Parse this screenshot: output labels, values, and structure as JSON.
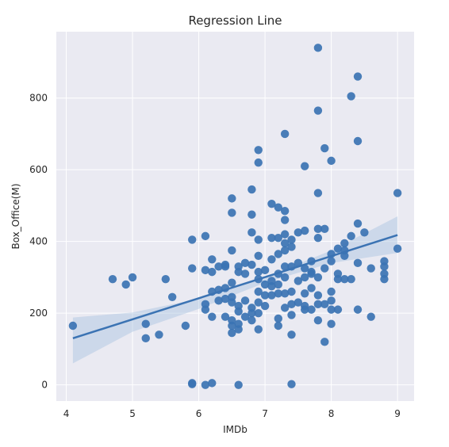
{
  "chart_data": {
    "type": "scatter",
    "title": "Regression Line",
    "xlabel": "IMDb",
    "ylabel": "Box_Office(M)",
    "xlim": [
      3.85,
      9.25
    ],
    "ylim": [
      -45,
      985
    ],
    "x_ticks": [
      4,
      5,
      6,
      7,
      8,
      9
    ],
    "y_ticks": [
      0,
      200,
      400,
      600,
      800
    ],
    "grid": true,
    "colors": {
      "background": "#eaeaf2",
      "points": "#3b73b3",
      "line": "#3b73b3",
      "band": "#a9c4e0"
    },
    "points": [
      [
        4.1,
        165
      ],
      [
        4.7,
        295
      ],
      [
        4.9,
        280
      ],
      [
        5.0,
        300
      ],
      [
        5.2,
        170
      ],
      [
        5.2,
        130
      ],
      [
        5.4,
        140
      ],
      [
        5.5,
        295
      ],
      [
        5.6,
        245
      ],
      [
        5.8,
        165
      ],
      [
        5.9,
        5
      ],
      [
        5.9,
        2
      ],
      [
        5.9,
        325
      ],
      [
        5.9,
        405
      ],
      [
        6.1,
        415
      ],
      [
        6.1,
        320
      ],
      [
        6.1,
        225
      ],
      [
        6.1,
        210
      ],
      [
        6.1,
        0
      ],
      [
        6.2,
        5
      ],
      [
        6.2,
        190
      ],
      [
        6.2,
        260
      ],
      [
        6.2,
        315
      ],
      [
        6.2,
        350
      ],
      [
        6.3,
        330
      ],
      [
        6.3,
        265
      ],
      [
        6.3,
        235
      ],
      [
        6.4,
        240
      ],
      [
        6.4,
        190
      ],
      [
        6.4,
        270
      ],
      [
        6.4,
        330
      ],
      [
        6.4,
        335
      ],
      [
        6.5,
        520
      ],
      [
        6.5,
        480
      ],
      [
        6.5,
        375
      ],
      [
        6.5,
        285
      ],
      [
        6.5,
        245
      ],
      [
        6.5,
        230
      ],
      [
        6.5,
        180
      ],
      [
        6.5,
        165
      ],
      [
        6.5,
        145
      ],
      [
        6.6,
        330
      ],
      [
        6.6,
        315
      ],
      [
        6.6,
        220
      ],
      [
        6.6,
        205
      ],
      [
        6.6,
        170
      ],
      [
        6.6,
        155
      ],
      [
        6.6,
        0
      ],
      [
        6.7,
        340
      ],
      [
        6.7,
        310
      ],
      [
        6.7,
        235
      ],
      [
        6.7,
        190
      ],
      [
        6.8,
        545
      ],
      [
        6.8,
        475
      ],
      [
        6.8,
        425
      ],
      [
        6.8,
        335
      ],
      [
        6.8,
        215
      ],
      [
        6.8,
        200
      ],
      [
        6.8,
        180
      ],
      [
        6.9,
        655
      ],
      [
        6.9,
        620
      ],
      [
        6.9,
        405
      ],
      [
        6.9,
        360
      ],
      [
        6.9,
        315
      ],
      [
        6.9,
        295
      ],
      [
        6.9,
        260
      ],
      [
        6.9,
        230
      ],
      [
        6.9,
        200
      ],
      [
        6.9,
        155
      ],
      [
        7.0,
        320
      ],
      [
        7.0,
        280
      ],
      [
        7.0,
        250
      ],
      [
        7.0,
        220
      ],
      [
        7.1,
        505
      ],
      [
        7.1,
        410
      ],
      [
        7.1,
        350
      ],
      [
        7.1,
        290
      ],
      [
        7.1,
        275
      ],
      [
        7.1,
        250
      ],
      [
        7.2,
        495
      ],
      [
        7.2,
        410
      ],
      [
        7.2,
        365
      ],
      [
        7.2,
        310
      ],
      [
        7.2,
        280
      ],
      [
        7.2,
        255
      ],
      [
        7.2,
        185
      ],
      [
        7.2,
        165
      ],
      [
        7.3,
        700
      ],
      [
        7.3,
        485
      ],
      [
        7.3,
        460
      ],
      [
        7.3,
        420
      ],
      [
        7.3,
        395
      ],
      [
        7.3,
        375
      ],
      [
        7.3,
        330
      ],
      [
        7.3,
        300
      ],
      [
        7.3,
        255
      ],
      [
        7.3,
        215
      ],
      [
        7.4,
        405
      ],
      [
        7.4,
        385
      ],
      [
        7.4,
        330
      ],
      [
        7.4,
        260
      ],
      [
        7.4,
        225
      ],
      [
        7.4,
        195
      ],
      [
        7.4,
        140
      ],
      [
        7.4,
        2
      ],
      [
        7.5,
        425
      ],
      [
        7.5,
        340
      ],
      [
        7.5,
        290
      ],
      [
        7.5,
        230
      ],
      [
        7.6,
        610
      ],
      [
        7.6,
        430
      ],
      [
        7.6,
        325
      ],
      [
        7.6,
        300
      ],
      [
        7.6,
        255
      ],
      [
        7.6,
        220
      ],
      [
        7.6,
        210
      ],
      [
        7.7,
        345
      ],
      [
        7.7,
        315
      ],
      [
        7.7,
        310
      ],
      [
        7.7,
        270
      ],
      [
        7.7,
        210
      ],
      [
        7.8,
        940
      ],
      [
        7.8,
        765
      ],
      [
        7.8,
        535
      ],
      [
        7.8,
        435
      ],
      [
        7.8,
        410
      ],
      [
        7.8,
        300
      ],
      [
        7.8,
        250
      ],
      [
        7.8,
        225
      ],
      [
        7.8,
        180
      ],
      [
        7.9,
        660
      ],
      [
        7.9,
        435
      ],
      [
        7.9,
        325
      ],
      [
        7.9,
        225
      ],
      [
        7.9,
        120
      ],
      [
        8.0,
        625
      ],
      [
        8.0,
        365
      ],
      [
        8.0,
        345
      ],
      [
        8.0,
        260
      ],
      [
        8.0,
        235
      ],
      [
        8.0,
        210
      ],
      [
        8.0,
        170
      ],
      [
        8.1,
        380
      ],
      [
        8.1,
        310
      ],
      [
        8.1,
        295
      ],
      [
        8.1,
        210
      ],
      [
        8.2,
        395
      ],
      [
        8.2,
        375
      ],
      [
        8.2,
        360
      ],
      [
        8.2,
        295
      ],
      [
        8.3,
        805
      ],
      [
        8.3,
        415
      ],
      [
        8.3,
        295
      ],
      [
        8.4,
        860
      ],
      [
        8.4,
        680
      ],
      [
        8.4,
        450
      ],
      [
        8.4,
        340
      ],
      [
        8.4,
        210
      ],
      [
        8.5,
        425
      ],
      [
        8.6,
        325
      ],
      [
        8.6,
        190
      ],
      [
        8.8,
        345
      ],
      [
        8.8,
        330
      ],
      [
        8.8,
        310
      ],
      [
        8.8,
        295
      ],
      [
        9.0,
        535
      ],
      [
        9.0,
        380
      ]
    ],
    "regression": {
      "x_start": 4.1,
      "x_end": 9.0,
      "y_start": 130,
      "y_end": 418,
      "band_upper": [
        [
          4.1,
          188
        ],
        [
          5.0,
          202
        ],
        [
          6.0,
          240
        ],
        [
          7.0,
          300
        ],
        [
          8.0,
          375
        ],
        [
          9.0,
          470
        ]
      ],
      "band_lower": [
        [
          4.1,
          60
        ],
        [
          5.0,
          148
        ],
        [
          6.0,
          212
        ],
        [
          7.0,
          285
        ],
        [
          8.0,
          340
        ],
        [
          9.0,
          368
        ]
      ]
    }
  }
}
